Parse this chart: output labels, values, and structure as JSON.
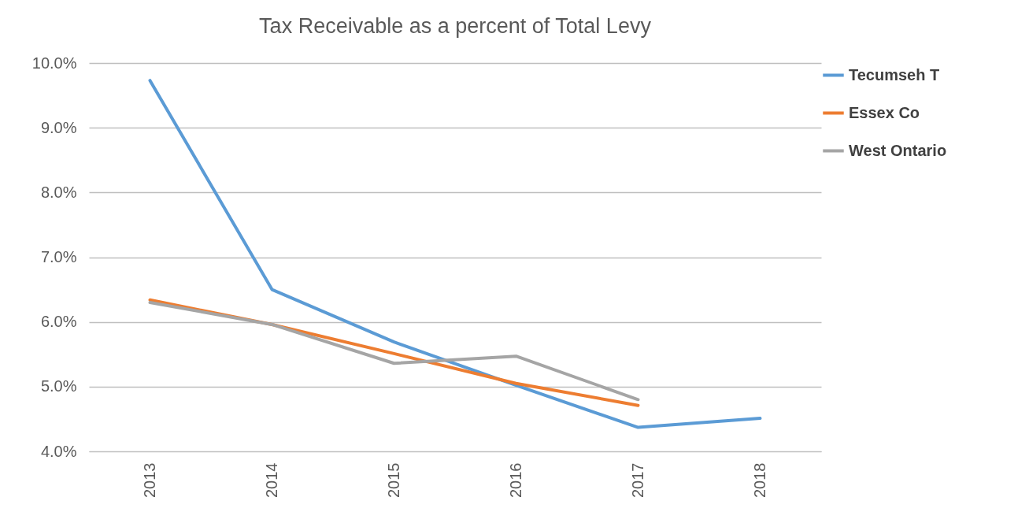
{
  "chart_data": {
    "type": "line",
    "title": "Tax Receivable as a percent of Total Levy",
    "categories": [
      "2013",
      "2014",
      "2015",
      "2016",
      "2017",
      "2018"
    ],
    "series": [
      {
        "name": "Tecumseh T",
        "color": "#5b9bd5",
        "values": [
          9.73,
          6.5,
          5.69,
          5.02,
          4.37,
          4.51
        ]
      },
      {
        "name": "Essex Co",
        "color": "#ed7d31",
        "values": [
          6.34,
          5.96,
          5.51,
          5.05,
          4.71,
          null
        ]
      },
      {
        "name": "West Ontario",
        "color": "#a5a5a5",
        "values": [
          6.3,
          5.96,
          5.36,
          5.47,
          4.8,
          null
        ]
      }
    ],
    "ylim": [
      4,
      10
    ],
    "yticks": [
      {
        "value": 4,
        "label": "4.0%"
      },
      {
        "value": 5,
        "label": "5.0%"
      },
      {
        "value": 6,
        "label": "6.0%"
      },
      {
        "value": 7,
        "label": "7.0%"
      },
      {
        "value": 8,
        "label": "8.0%"
      },
      {
        "value": 9,
        "label": "9.0%"
      },
      {
        "value": 10,
        "label": "10.0%"
      }
    ],
    "grid": "y",
    "legend": "right",
    "marker": "none",
    "line_style": "solid"
  }
}
